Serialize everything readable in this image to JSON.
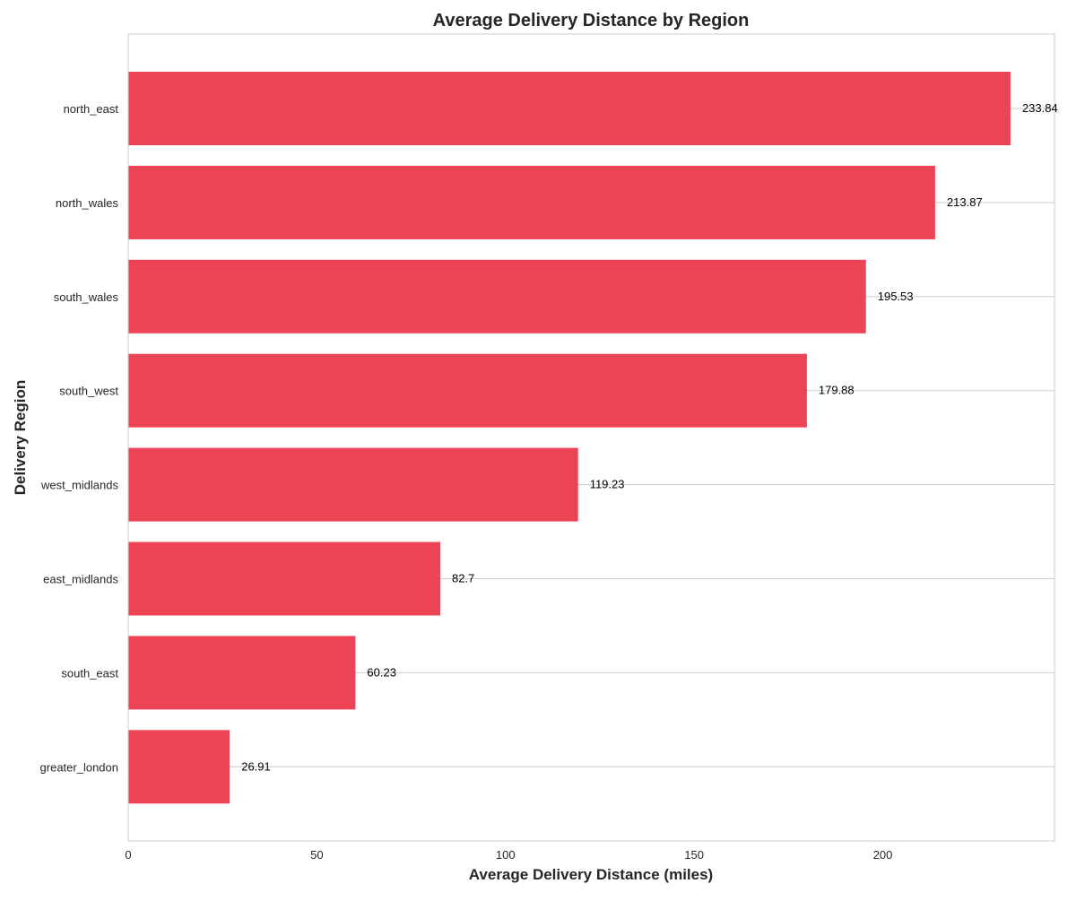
{
  "chart_data": {
    "type": "bar",
    "orientation": "horizontal",
    "title": "Average Delivery Distance by Region",
    "xlabel": "Average Delivery Distance (miles)",
    "ylabel": "Delivery Region",
    "categories": [
      "north_east",
      "north_wales",
      "south_wales",
      "south_west",
      "west_midlands",
      "east_midlands",
      "south_east",
      "greater_london"
    ],
    "values": [
      233.84,
      213.87,
      195.53,
      179.88,
      119.23,
      82.7,
      60.23,
      26.91
    ],
    "value_labels": [
      "233.84",
      "213.87",
      "195.53",
      "179.88",
      "119.23",
      "82.7",
      "60.23",
      "26.91"
    ],
    "xlim": [
      0,
      245.5
    ],
    "xticks": [
      0,
      50,
      100,
      150,
      200
    ],
    "xtick_labels": [
      "0",
      "50",
      "100",
      "150",
      "200"
    ],
    "grid": "horizontal lines at each category",
    "colors": {
      "bar": "#ec4455",
      "grid": "#cccccc",
      "text": "#262626"
    }
  }
}
